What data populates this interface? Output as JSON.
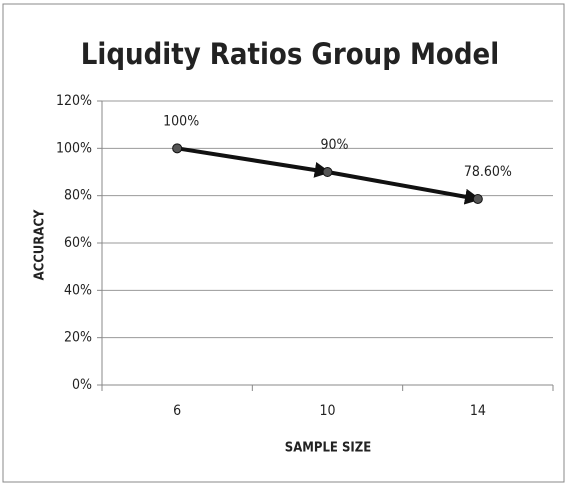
{
  "chart_data": {
    "type": "line",
    "title": "Liqudity Ratios Group Model",
    "x_label": "SAMPLE SIZE",
    "y_label": "ACCURACY",
    "categories": [
      "6",
      "10",
      "14"
    ],
    "values": [
      100,
      90,
      78.6
    ],
    "value_labels": [
      "100%",
      "90%",
      "78.60%"
    ],
    "color": "#111111",
    "ylim": [
      0,
      120
    ],
    "yticks": [
      {
        "value": 0,
        "label": "0%"
      },
      {
        "value": 20,
        "label": "20%"
      },
      {
        "value": 40,
        "label": "40%"
      },
      {
        "value": 60,
        "label": "60%"
      },
      {
        "value": 80,
        "label": "80%"
      },
      {
        "value": 100,
        "label": "100%"
      },
      {
        "value": 120,
        "label": "120%"
      }
    ],
    "grid": true
  }
}
